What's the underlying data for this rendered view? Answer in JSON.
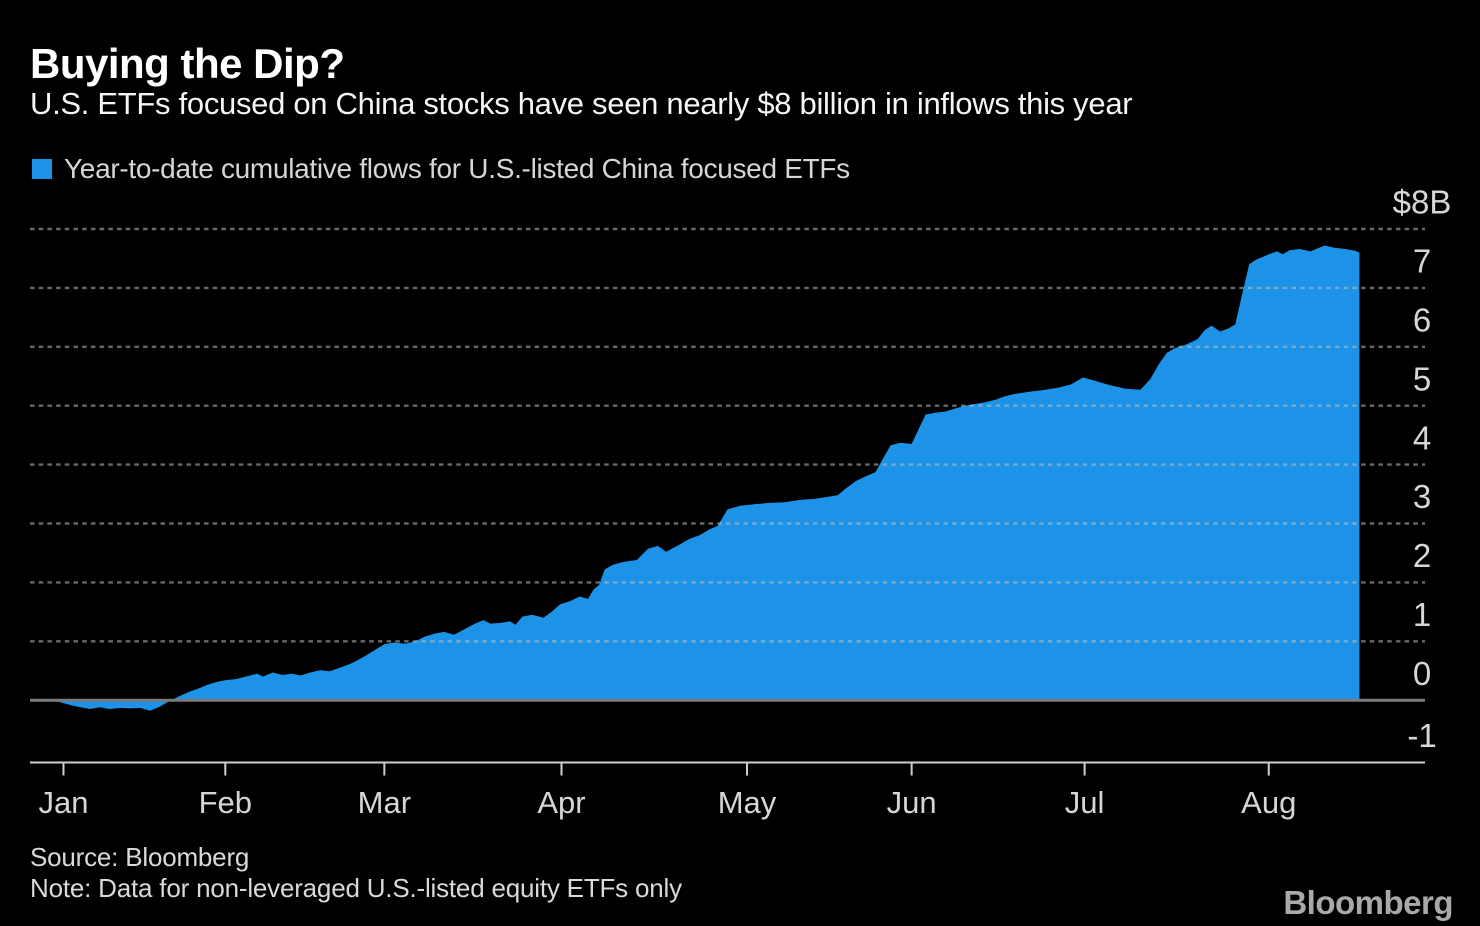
{
  "chart_data": {
    "type": "area",
    "title": "Buying the Dip?",
    "subtitle": "U.S. ETFs focused on China stocks have seen nearly $8 billion in inflows this year",
    "legend": "Year-to-date cumulative flows for U.S.-listed China focused ETFs",
    "unit": "billions USD",
    "ylim": [
      -1,
      8
    ],
    "grid": "dotted horizontal",
    "legend_position": "top-left",
    "yticks": [
      {
        "value": 8,
        "label": "$8B"
      },
      {
        "value": 7,
        "label": "7"
      },
      {
        "value": 6,
        "label": "6"
      },
      {
        "value": 5,
        "label": "5"
      },
      {
        "value": 4,
        "label": "4"
      },
      {
        "value": 3,
        "label": "3"
      },
      {
        "value": 2,
        "label": "2"
      },
      {
        "value": 1,
        "label": "1"
      },
      {
        "value": 0,
        "label": "0"
      },
      {
        "value": -1,
        "label": "-1"
      }
    ],
    "xticks": [
      {
        "f": 0.024,
        "label": "Jan"
      },
      {
        "f": 0.14,
        "label": "Feb"
      },
      {
        "f": 0.254,
        "label": "Mar"
      },
      {
        "f": 0.381,
        "label": "Apr"
      },
      {
        "f": 0.514,
        "label": "May"
      },
      {
        "f": 0.632,
        "label": "Jun"
      },
      {
        "f": 0.756,
        "label": "Jul"
      },
      {
        "f": 0.888,
        "label": "Aug"
      }
    ],
    "series": [
      {
        "name": "Year-to-date cumulative flows for U.S.-listed China focused ETFs",
        "baseline": 0,
        "points": [
          [
            0.0,
            0.0
          ],
          [
            0.016,
            0.0
          ],
          [
            0.024,
            -0.05
          ],
          [
            0.032,
            -0.1
          ],
          [
            0.043,
            -0.15
          ],
          [
            0.05,
            -0.12
          ],
          [
            0.057,
            -0.15
          ],
          [
            0.065,
            -0.13
          ],
          [
            0.072,
            -0.14
          ],
          [
            0.079,
            -0.13
          ],
          [
            0.086,
            -0.18
          ],
          [
            0.093,
            -0.11
          ],
          [
            0.098,
            -0.04
          ],
          [
            0.103,
            0.02
          ],
          [
            0.109,
            0.09
          ],
          [
            0.115,
            0.15
          ],
          [
            0.121,
            0.2
          ],
          [
            0.127,
            0.26
          ],
          [
            0.134,
            0.31
          ],
          [
            0.14,
            0.34
          ],
          [
            0.148,
            0.36
          ],
          [
            0.156,
            0.41
          ],
          [
            0.163,
            0.45
          ],
          [
            0.167,
            0.4
          ],
          [
            0.174,
            0.47
          ],
          [
            0.181,
            0.43
          ],
          [
            0.188,
            0.45
          ],
          [
            0.194,
            0.42
          ],
          [
            0.201,
            0.47
          ],
          [
            0.208,
            0.51
          ],
          [
            0.215,
            0.49
          ],
          [
            0.222,
            0.55
          ],
          [
            0.229,
            0.61
          ],
          [
            0.235,
            0.68
          ],
          [
            0.241,
            0.76
          ],
          [
            0.247,
            0.85
          ],
          [
            0.254,
            0.95
          ],
          [
            0.261,
            0.98
          ],
          [
            0.269,
            0.96
          ],
          [
            0.277,
            1.01
          ],
          [
            0.283,
            1.08
          ],
          [
            0.29,
            1.13
          ],
          [
            0.297,
            1.16
          ],
          [
            0.304,
            1.11
          ],
          [
            0.312,
            1.21
          ],
          [
            0.319,
            1.3
          ],
          [
            0.325,
            1.36
          ],
          [
            0.33,
            1.3
          ],
          [
            0.337,
            1.31
          ],
          [
            0.344,
            1.34
          ],
          [
            0.348,
            1.28
          ],
          [
            0.353,
            1.42
          ],
          [
            0.36,
            1.45
          ],
          [
            0.368,
            1.4
          ],
          [
            0.374,
            1.5
          ],
          [
            0.38,
            1.63
          ],
          [
            0.387,
            1.68
          ],
          [
            0.394,
            1.76
          ],
          [
            0.4,
            1.72
          ],
          [
            0.404,
            1.88
          ],
          [
            0.408,
            1.96
          ],
          [
            0.412,
            2.22
          ],
          [
            0.418,
            2.3
          ],
          [
            0.426,
            2.35
          ],
          [
            0.435,
            2.38
          ],
          [
            0.443,
            2.57
          ],
          [
            0.45,
            2.62
          ],
          [
            0.456,
            2.52
          ],
          [
            0.464,
            2.62
          ],
          [
            0.473,
            2.74
          ],
          [
            0.48,
            2.8
          ],
          [
            0.487,
            2.9
          ],
          [
            0.493,
            2.96
          ],
          [
            0.5,
            3.24
          ],
          [
            0.509,
            3.3
          ],
          [
            0.52,
            3.33
          ],
          [
            0.53,
            3.35
          ],
          [
            0.541,
            3.36
          ],
          [
            0.552,
            3.4
          ],
          [
            0.563,
            3.42
          ],
          [
            0.571,
            3.45
          ],
          [
            0.579,
            3.48
          ],
          [
            0.585,
            3.6
          ],
          [
            0.592,
            3.72
          ],
          [
            0.599,
            3.8
          ],
          [
            0.606,
            3.87
          ],
          [
            0.611,
            4.08
          ],
          [
            0.617,
            4.33
          ],
          [
            0.624,
            4.37
          ],
          [
            0.632,
            4.35
          ],
          [
            0.637,
            4.6
          ],
          [
            0.642,
            4.85
          ],
          [
            0.649,
            4.88
          ],
          [
            0.656,
            4.9
          ],
          [
            0.663,
            4.95
          ],
          [
            0.67,
            5.0
          ],
          [
            0.678,
            5.03
          ],
          [
            0.685,
            5.06
          ],
          [
            0.692,
            5.1
          ],
          [
            0.699,
            5.16
          ],
          [
            0.706,
            5.2
          ],
          [
            0.717,
            5.24
          ],
          [
            0.728,
            5.27
          ],
          [
            0.738,
            5.31
          ],
          [
            0.746,
            5.36
          ],
          [
            0.755,
            5.48
          ],
          [
            0.764,
            5.42
          ],
          [
            0.774,
            5.35
          ],
          [
            0.785,
            5.29
          ],
          [
            0.796,
            5.27
          ],
          [
            0.803,
            5.45
          ],
          [
            0.809,
            5.7
          ],
          [
            0.815,
            5.9
          ],
          [
            0.821,
            5.98
          ],
          [
            0.828,
            6.03
          ],
          [
            0.837,
            6.13
          ],
          [
            0.842,
            6.28
          ],
          [
            0.847,
            6.36
          ],
          [
            0.853,
            6.26
          ],
          [
            0.859,
            6.31
          ],
          [
            0.864,
            6.38
          ],
          [
            0.869,
            6.9
          ],
          [
            0.874,
            7.4
          ],
          [
            0.879,
            7.48
          ],
          [
            0.884,
            7.53
          ],
          [
            0.889,
            7.58
          ],
          [
            0.894,
            7.62
          ],
          [
            0.898,
            7.57
          ],
          [
            0.903,
            7.64
          ],
          [
            0.91,
            7.66
          ],
          [
            0.918,
            7.62
          ],
          [
            0.923,
            7.67
          ],
          [
            0.928,
            7.72
          ],
          [
            0.935,
            7.68
          ],
          [
            0.943,
            7.66
          ],
          [
            0.95,
            7.63
          ],
          [
            0.953,
            7.6
          ]
        ]
      }
    ]
  },
  "colors": {
    "background": "#000000",
    "area": "#1d93e8",
    "grid": "#bebebe",
    "zero_line": "#7b7b7b",
    "axis": "#cfcfcf",
    "tick_label": "#d6d6d6",
    "title": "#ffffff",
    "logo": "#a9a9a9"
  },
  "footer": {
    "source": "Source:  Bloomberg",
    "note": "Note:  Data for non-leveraged U.S.-listed equity ETFs only",
    "logo": "Bloomberg"
  }
}
